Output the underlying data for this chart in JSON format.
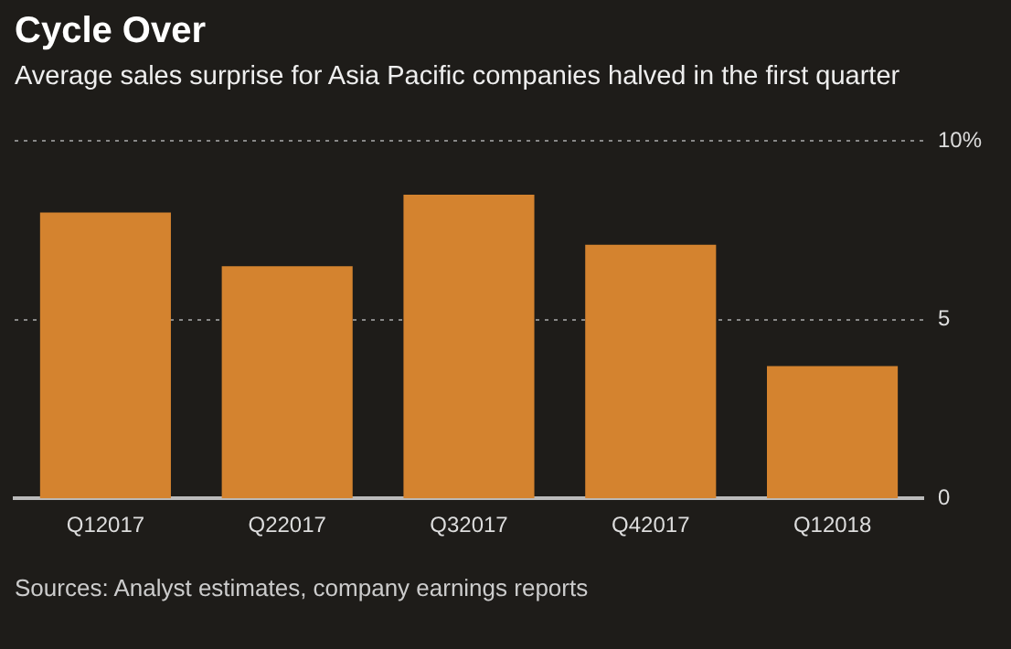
{
  "chart_data": {
    "type": "bar",
    "title": "Cycle Over",
    "subtitle": "Average sales surprise for Asia Pacific companies halved in the first quarter",
    "categories": [
      "Q12017",
      "Q22017",
      "Q32017",
      "Q42017",
      "Q12018"
    ],
    "values": [
      8.0,
      6.5,
      8.5,
      7.1,
      3.7
    ],
    "color": "#d4832f",
    "ylim": [
      0,
      10
    ],
    "yticks": [
      0,
      5,
      {
        "value": 10,
        "label": "10%"
      }
    ],
    "grid": "y",
    "line_style": "dotted",
    "annotations": [
      "Sources: Analyst estimates, company earnings reports"
    ]
  }
}
